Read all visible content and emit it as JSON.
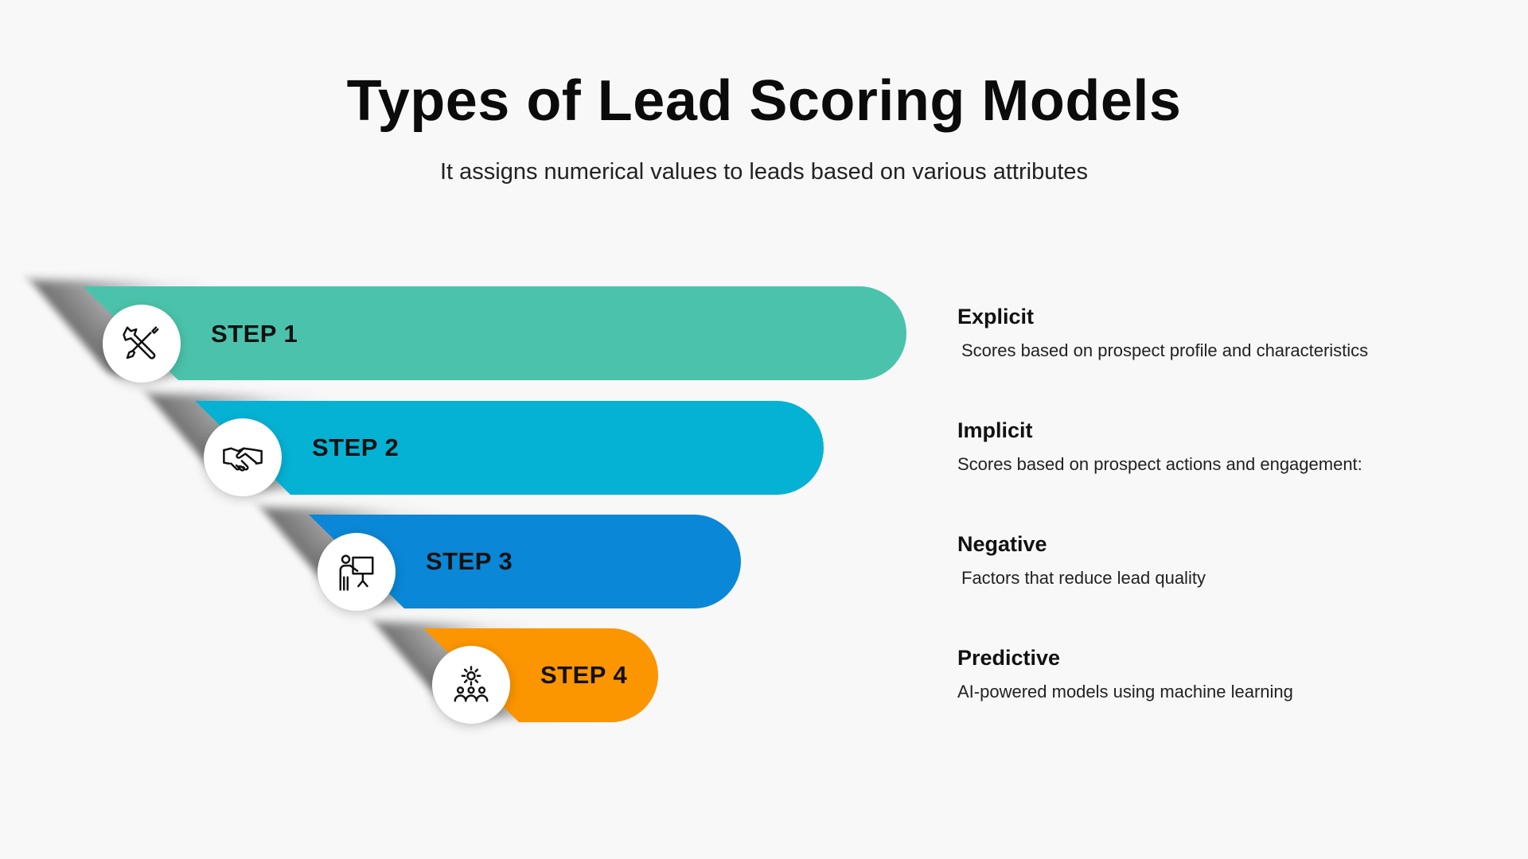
{
  "title": "Types of Lead Scoring Models",
  "subtitle": "It assigns numerical values to leads based on various attributes",
  "steps": [
    {
      "label": "STEP 1",
      "color": "#4bc3ac",
      "icon": "tools-icon",
      "heading": "Explicit",
      "text": "Scores based on prospect profile and characteristics"
    },
    {
      "label": "STEP 2",
      "color": "#06b2d4",
      "icon": "handshake-icon",
      "heading": "Implicit",
      "text": "Scores based on prospect actions and engagement:"
    },
    {
      "label": "STEP 3",
      "color": "#0a87d6",
      "icon": "presenter-icon",
      "heading": "Negative",
      "text": "Factors that reduce lead quality"
    },
    {
      "label": "STEP 4",
      "color": "#fb9500",
      "icon": "team-gear-icon",
      "heading": "Predictive",
      "text": "AI-powered models using machine learning"
    }
  ]
}
